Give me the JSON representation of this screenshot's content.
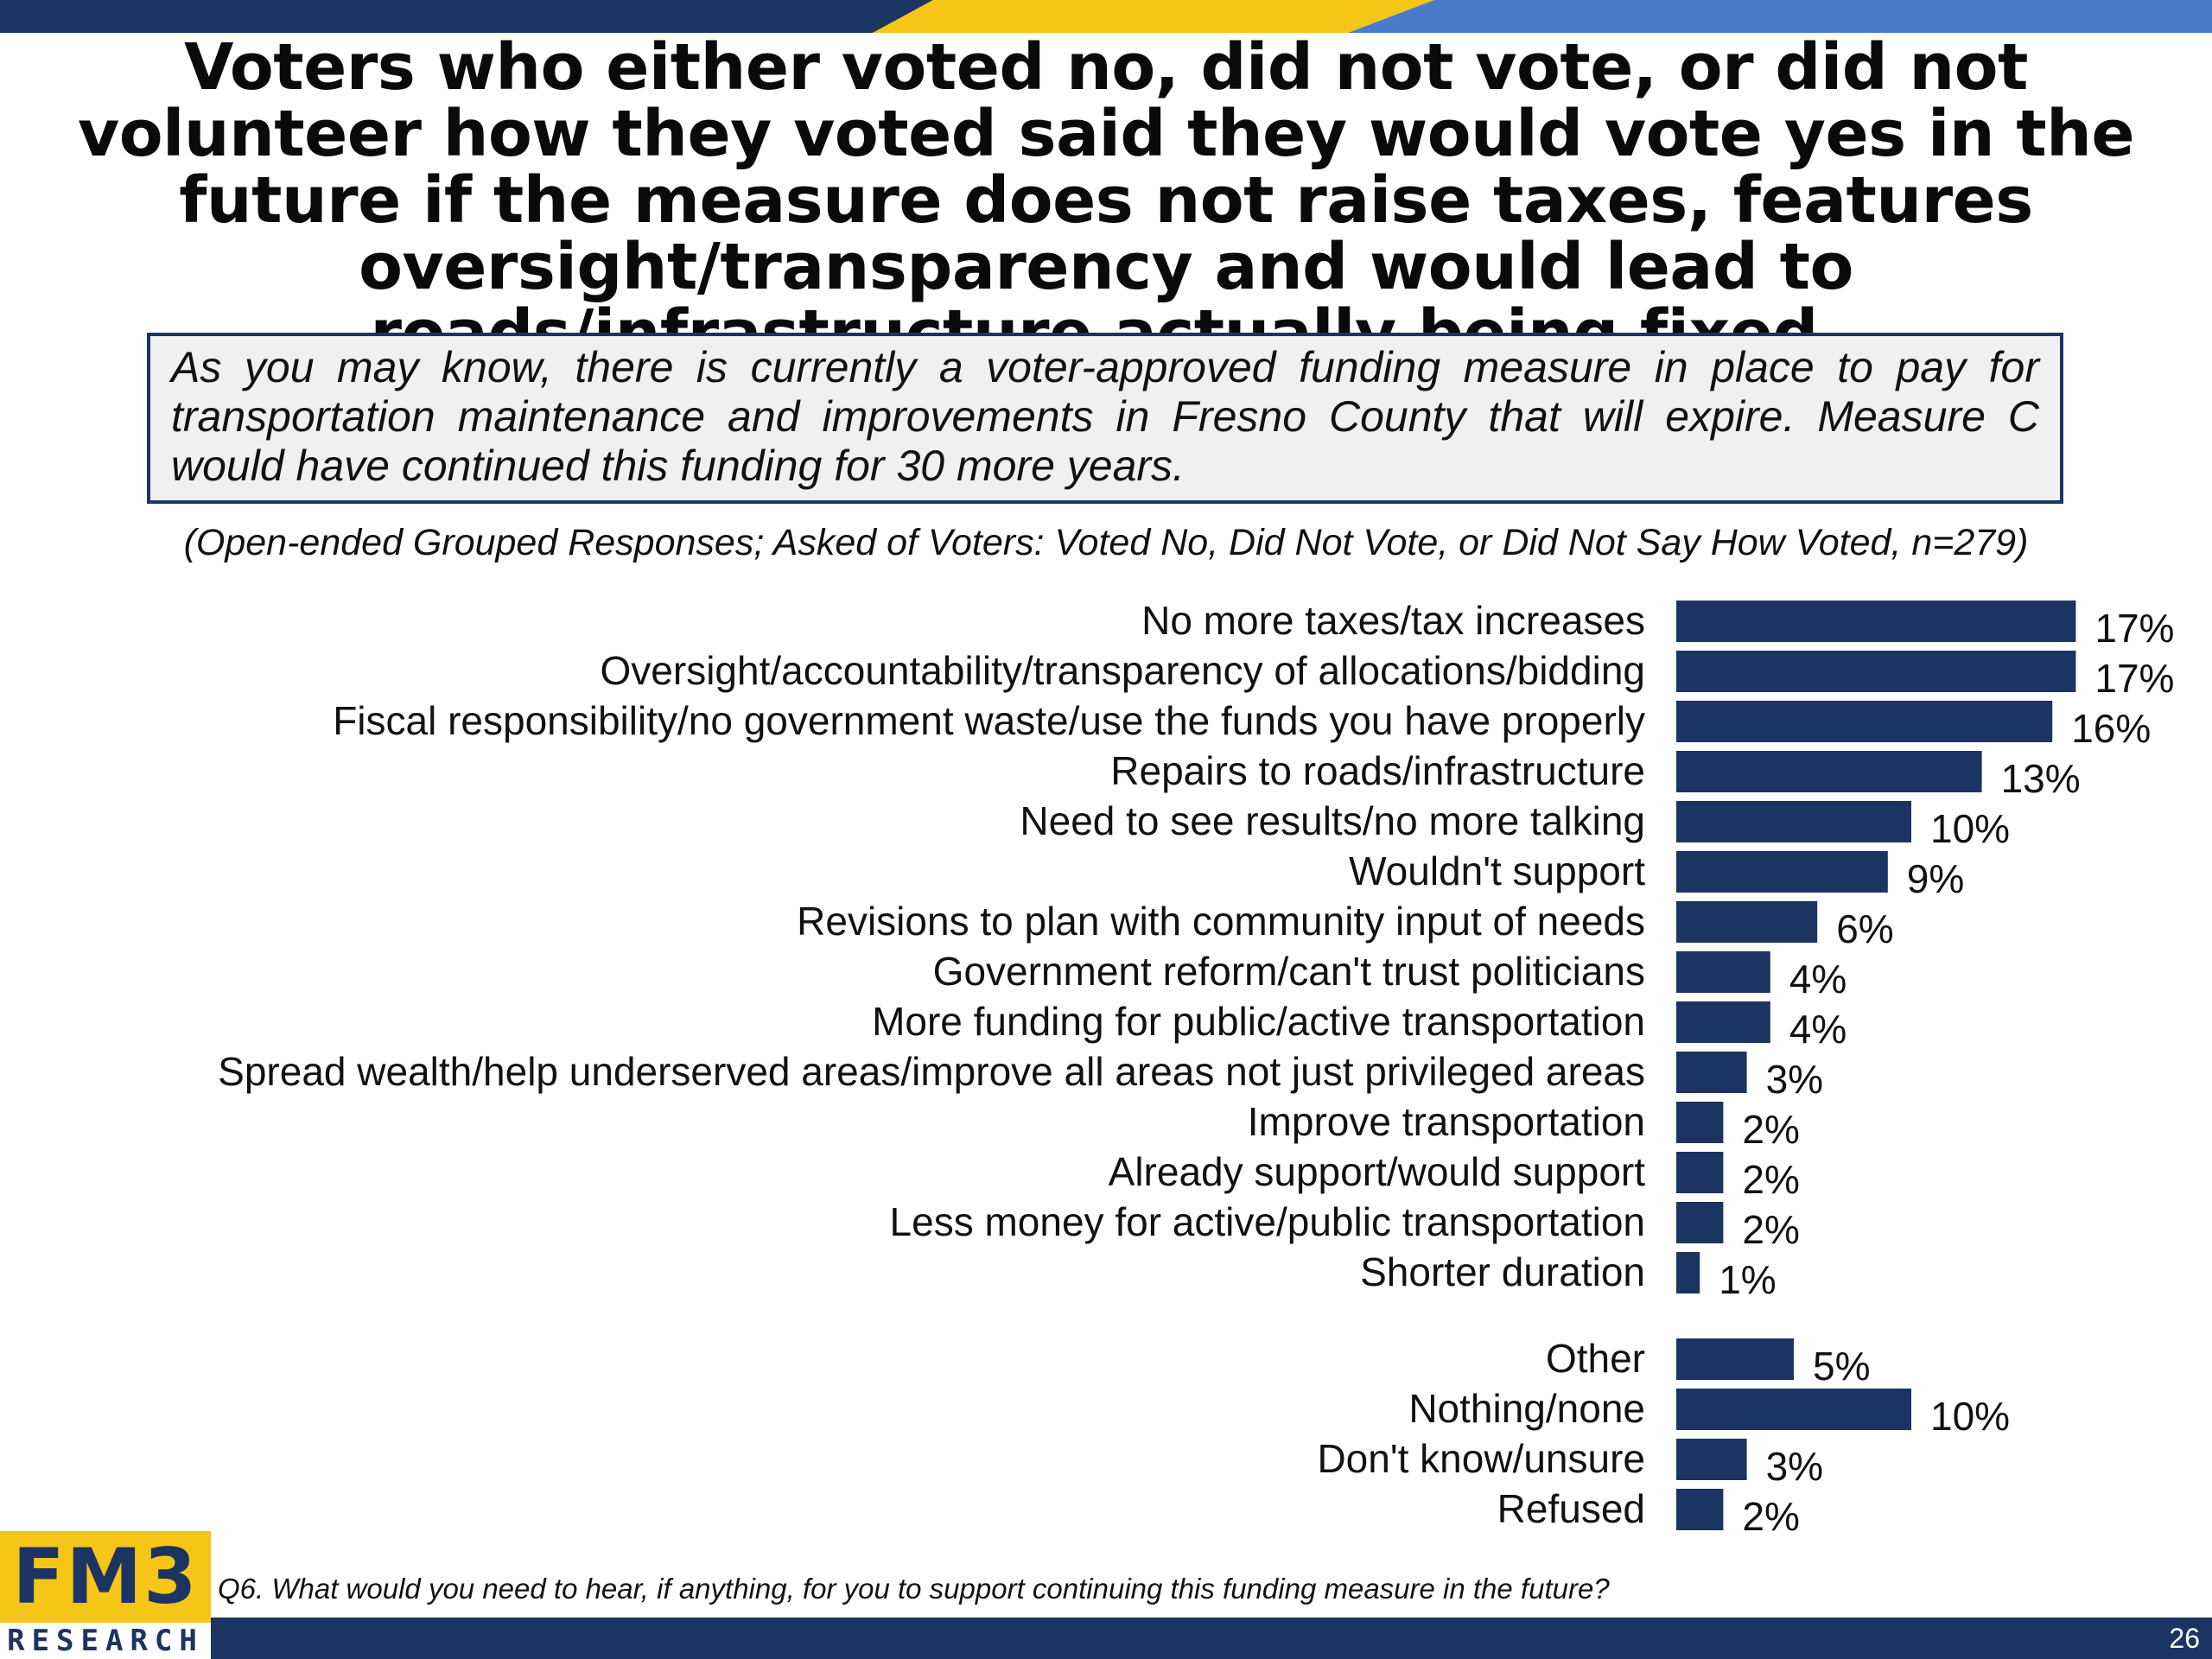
{
  "slide": {
    "title": "Voters who either voted no, did not vote, or did not volunteer how they voted said they would vote yes in the future if the measure does not raise taxes, features oversight/transparency and would lead to roads/infrastructure actually being fixed.",
    "question_text": "As you may know, there is currently a voter-approved funding measure in place to pay for transportation maintenance and improvements in Fresno County that will expire. Measure C would have continued this funding for 30 more years.",
    "base_note": "(Open-ended Grouped Responses; Asked of Voters: Voted No, Did Not Vote, or Did Not Say How Voted,  n=279)",
    "footnote": "Q6. What would you need to hear, if anything, for you to support continuing this funding measure in the future?",
    "page_number": "26",
    "logo": {
      "main": "FM3",
      "sub": "RESEARCH"
    }
  },
  "colors": {
    "bar": "#1c3461",
    "band_navy": "#1c3461",
    "band_gold": "#f5c518",
    "band_blue": "#4a7bc8"
  },
  "chart_data": {
    "type": "bar",
    "orientation": "horizontal",
    "value_suffix": "%",
    "xlim": [
      0,
      17
    ],
    "grid": false,
    "legend": "none",
    "categories": [
      "No more taxes/tax increases",
      "Oversight/accountability/transparency of allocations/bidding",
      "Fiscal responsibility/no government waste/use the funds you have properly",
      "Repairs to roads/infrastructure",
      "Need to see results/no more talking",
      "Wouldn't support",
      "Revisions to plan with community input of needs",
      "Government reform/can't trust politicians",
      "More funding for public/active transportation",
      "Spread wealth/help underserved areas/improve all areas not just privileged areas",
      "Improve transportation",
      "Already support/would support",
      "Less money for active/public transportation",
      "Shorter duration",
      "Other",
      "Nothing/none",
      "Don't know/unsure",
      "Refused"
    ],
    "values": [
      17,
      17,
      16,
      13,
      10,
      9,
      6,
      4,
      4,
      3,
      2,
      2,
      2,
      1,
      5,
      10,
      3,
      2
    ],
    "data_labels": [
      "17%",
      "17%",
      "16%",
      "13%",
      "10%",
      "9%",
      "6%",
      "4%",
      "4%",
      "3%",
      "2%",
      "2%",
      "2%",
      "1%",
      "5%",
      "10%",
      "3%",
      "2%"
    ]
  }
}
